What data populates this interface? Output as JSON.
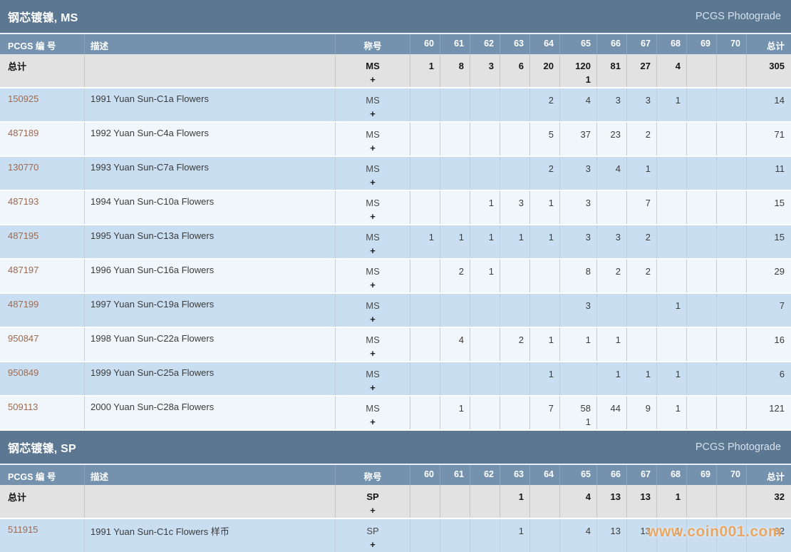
{
  "watermark": "www.coin001.com",
  "colors": {
    "section_bar": "#5c7791",
    "column_header": "#7492ad",
    "total_row_bg": "#e2e2e2",
    "row_blue": "#c9def0",
    "row_light": "#f1f6fa",
    "link": "#9c6a50",
    "watermark": "#e99642"
  },
  "columns": {
    "number": "PCGS 编 号",
    "description": "描述",
    "designation": "称号",
    "grades": [
      "60",
      "61",
      "62",
      "63",
      "64",
      "65",
      "66",
      "67",
      "68",
      "69",
      "70"
    ],
    "total": "总计"
  },
  "sections": [
    {
      "title": "钢芯镀镍, MS",
      "photograde": "PCGS Photograde",
      "total_row": {
        "label": "总计",
        "designation": "MS",
        "plus": "+",
        "g60": "1",
        "g61": "8",
        "g62": "3",
        "g63": "6",
        "g64": "20",
        "g65": "120",
        "g65b": "1",
        "g66": "81",
        "g67": "27",
        "g68": "4",
        "total": "305"
      },
      "rows": [
        {
          "number": "150925",
          "description": "1991 Yuan Sun-C1a Flowers",
          "designation": "MS",
          "plus": "+",
          "g64": "2",
          "g65": "4",
          "g66": "3",
          "g67": "3",
          "g68": "1",
          "total": "14"
        },
        {
          "number": "487189",
          "description": "1992 Yuan Sun-C4a Flowers",
          "designation": "MS",
          "plus": "+",
          "g64": "5",
          "g65": "37",
          "g66": "23",
          "g67": "2",
          "total": "71"
        },
        {
          "number": "130770",
          "description": "1993 Yuan Sun-C7a Flowers",
          "designation": "MS",
          "plus": "+",
          "g64": "2",
          "g65": "3",
          "g66": "4",
          "g67": "1",
          "total": "11"
        },
        {
          "number": "487193",
          "description": "1994 Yuan Sun-C10a Flowers",
          "designation": "MS",
          "plus": "+",
          "g62": "1",
          "g63": "3",
          "g64": "1",
          "g65": "3",
          "g67": "7",
          "total": "15"
        },
        {
          "number": "487195",
          "description": "1995 Yuan Sun-C13a Flowers",
          "designation": "MS",
          "plus": "+",
          "g60": "1",
          "g61": "1",
          "g62": "1",
          "g63": "1",
          "g64": "1",
          "g65": "3",
          "g66": "3",
          "g67": "2",
          "total": "15"
        },
        {
          "number": "487197",
          "description": "1996 Yuan Sun-C16a Flowers",
          "designation": "MS",
          "plus": "+",
          "g61": "2",
          "g62": "1",
          "g65": "8",
          "g66": "2",
          "g67": "2",
          "total": "29"
        },
        {
          "number": "487199",
          "description": "1997 Yuan Sun-C19a Flowers",
          "designation": "MS",
          "plus": "+",
          "g65": "3",
          "g68": "1",
          "total": "7"
        },
        {
          "number": "950847",
          "description": "1998 Yuan Sun-C22a Flowers",
          "designation": "MS",
          "plus": "+",
          "g61": "4",
          "g63": "2",
          "g64": "1",
          "g65": "1",
          "g66": "1",
          "total": "16"
        },
        {
          "number": "950849",
          "description": "1999 Yuan Sun-C25a Flowers",
          "designation": "MS",
          "plus": "+",
          "g64": "1",
          "g66": "1",
          "g67": "1",
          "g68": "1",
          "total": "6"
        },
        {
          "number": "509113",
          "description": "2000 Yuan Sun-C28a Flowers",
          "designation": "MS",
          "plus": "+",
          "g61": "1",
          "g64": "7",
          "g65": "58",
          "g65b": "1",
          "g66": "44",
          "g67": "9",
          "g68": "1",
          "total": "121"
        }
      ]
    },
    {
      "title": "钢芯镀镍, SP",
      "photograde": "PCGS Photograde",
      "total_row": {
        "label": "总计",
        "designation": "SP",
        "plus": "+",
        "g63": "1",
        "g65": "4",
        "g66": "13",
        "g67": "13",
        "g68": "1",
        "total": "32"
      },
      "rows": [
        {
          "number": "511915",
          "description": "1991 Yuan Sun-C1c Flowers 样币",
          "designation": "SP",
          "plus": "+",
          "g63": "1",
          "g65": "4",
          "g66": "13",
          "g67": "13",
          "g68": "1",
          "total": "32"
        }
      ]
    }
  ]
}
